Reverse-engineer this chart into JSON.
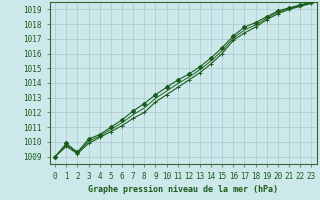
{
  "title": "Graphe pression niveau de la mer (hPa)",
  "background_color": "#cce8ea",
  "grid_color": "#aac8cc",
  "line_color": "#1a5c1a",
  "border_color": "#336633",
  "x_min": -0.5,
  "x_max": 23.5,
  "y_min": 1008.5,
  "y_max": 1019.5,
  "x_ticks": [
    0,
    1,
    2,
    3,
    4,
    5,
    6,
    7,
    8,
    9,
    10,
    11,
    12,
    13,
    14,
    15,
    16,
    17,
    18,
    19,
    20,
    21,
    22,
    23
  ],
  "y_ticks": [
    1009,
    1010,
    1011,
    1012,
    1013,
    1014,
    1015,
    1016,
    1017,
    1018,
    1019
  ],
  "series1_x": [
    0,
    1,
    2,
    3,
    4,
    5,
    6,
    7,
    8,
    9,
    10,
    11,
    12,
    13,
    14,
    15,
    16,
    17,
    18,
    19,
    20,
    21,
    22,
    23
  ],
  "series1_y": [
    1009.0,
    1009.7,
    1009.2,
    1009.9,
    1010.3,
    1010.7,
    1011.1,
    1011.6,
    1012.0,
    1012.7,
    1013.2,
    1013.7,
    1014.2,
    1014.7,
    1015.3,
    1016.0,
    1016.9,
    1017.4,
    1017.8,
    1018.3,
    1018.7,
    1019.0,
    1019.2,
    1019.4
  ],
  "series2_x": [
    0,
    1,
    2,
    3,
    4,
    5,
    6,
    7,
    8,
    9,
    10,
    11,
    12,
    13,
    14,
    15,
    16,
    17,
    18,
    19,
    20,
    21,
    22,
    23
  ],
  "series2_y": [
    1009.0,
    1009.9,
    1009.3,
    1010.2,
    1010.5,
    1011.0,
    1011.5,
    1012.1,
    1012.6,
    1013.2,
    1013.7,
    1014.2,
    1014.6,
    1015.1,
    1015.7,
    1016.4,
    1017.2,
    1017.8,
    1018.1,
    1018.5,
    1018.9,
    1019.1,
    1019.3,
    1019.5
  ],
  "series3_x": [
    0,
    1,
    2,
    3,
    4,
    5,
    6,
    7,
    8,
    9,
    10,
    11,
    12,
    13,
    14,
    15,
    16,
    17,
    18,
    19,
    20,
    21,
    22,
    23
  ],
  "series3_y": [
    1009.0,
    1009.8,
    1009.25,
    1010.05,
    1010.4,
    1010.85,
    1011.3,
    1011.85,
    1012.3,
    1012.95,
    1013.45,
    1013.95,
    1014.4,
    1014.9,
    1015.5,
    1016.2,
    1017.05,
    1017.6,
    1017.95,
    1018.4,
    1018.8,
    1019.05,
    1019.25,
    1019.45
  ],
  "tick_fontsize": 5.5,
  "label_fontsize": 6.0,
  "linewidth": 0.8,
  "markersize": 2.0
}
